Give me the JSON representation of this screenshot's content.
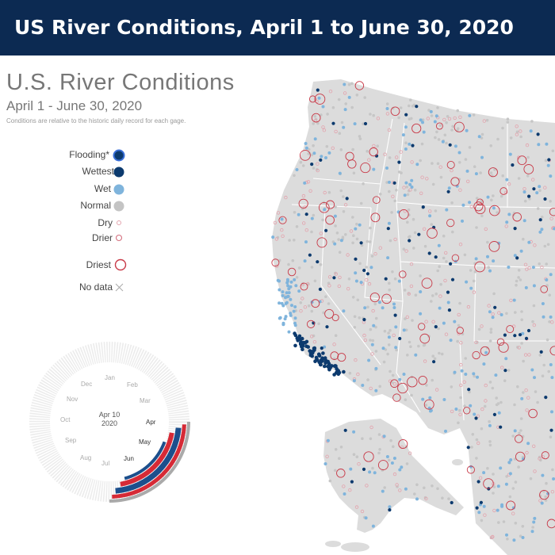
{
  "header": {
    "title": "US River Conditions, April 1 to June 30, 2020"
  },
  "map": {
    "title": "U.S. River Conditions",
    "subtitle": "April 1 - June 30, 2020",
    "note": "Conditions are relative to the historic daily record for each gage."
  },
  "legend": {
    "items": [
      {
        "label": "Flooding*",
        "symbol": "flooding-dot"
      },
      {
        "label": "Wettest",
        "symbol": "wettest-dot"
      },
      {
        "label": "Wet",
        "symbol": "wet-dot"
      },
      {
        "label": "Normal",
        "symbol": "normal-dot"
      },
      {
        "label": "Dry",
        "symbol": "dry-ring"
      },
      {
        "label": "Drier",
        "symbol": "drier-ring"
      },
      {
        "label": "Driest",
        "symbol": "driest-ring"
      },
      {
        "label": "No data",
        "symbol": "no-data-cross"
      }
    ]
  },
  "clock": {
    "date_line1": "Apr 10",
    "date_line2": "2020",
    "months": [
      "Jan",
      "Feb",
      "Mar",
      "Apr",
      "May",
      "Jun",
      "Jul",
      "Aug",
      "Sep",
      "Oct",
      "Nov",
      "Dec"
    ],
    "active_months": [
      "Apr",
      "May",
      "Jun"
    ]
  },
  "colors": {
    "header_bg": "#0c2a52",
    "land": "#dcdcdc",
    "border": "#ffffff",
    "flooding": "#1f3f8a",
    "wettest": "#0c3a6e",
    "wet": "#7fb4dc",
    "normal": "#c4c4c4",
    "dry": "#e3a3ad",
    "drier": "#d4707f",
    "driest": "#c83a48",
    "chart_red": "#d62a36",
    "chart_blue": "#1c4f8c",
    "chart_gray": "#888888"
  }
}
